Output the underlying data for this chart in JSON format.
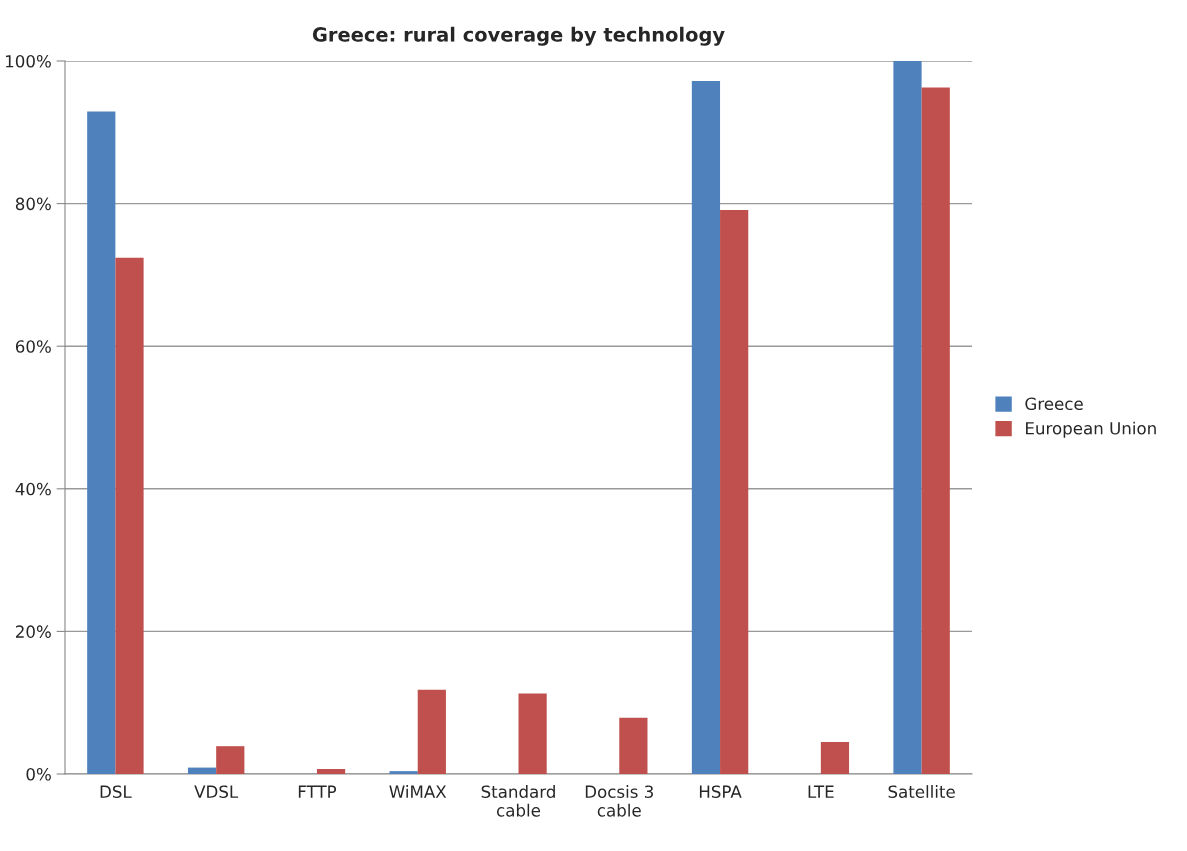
{
  "chart_data": {
    "type": "bar",
    "title": "Greece: rural coverage by technology",
    "categories": [
      "DSL",
      "VDSL",
      "FTTP",
      "WiMAX",
      "Standard\ncable",
      "Docsis 3\ncable",
      "HSPA",
      "LTE",
      "Satellite"
    ],
    "series": [
      {
        "name": "Greece",
        "color": "#4f81bd",
        "values": [
          92.9,
          0.9,
          0,
          0.4,
          0,
          0,
          97.2,
          0,
          100
        ]
      },
      {
        "name": "European Union",
        "color": "#c0504d",
        "values": [
          72.4,
          3.9,
          0.7,
          11.8,
          11.3,
          7.9,
          79.1,
          4.5,
          96.3
        ]
      }
    ],
    "ylim": [
      0,
      100
    ],
    "yticks": [
      {
        "value": 0,
        "label": "0%"
      },
      {
        "value": 20,
        "label": "20%"
      },
      {
        "value": 40,
        "label": "40%"
      },
      {
        "value": 60,
        "label": "60%"
      },
      {
        "value": 80,
        "label": "80%"
      },
      {
        "value": 100,
        "label": "100%"
      }
    ],
    "grid": "y",
    "legend": "right"
  }
}
